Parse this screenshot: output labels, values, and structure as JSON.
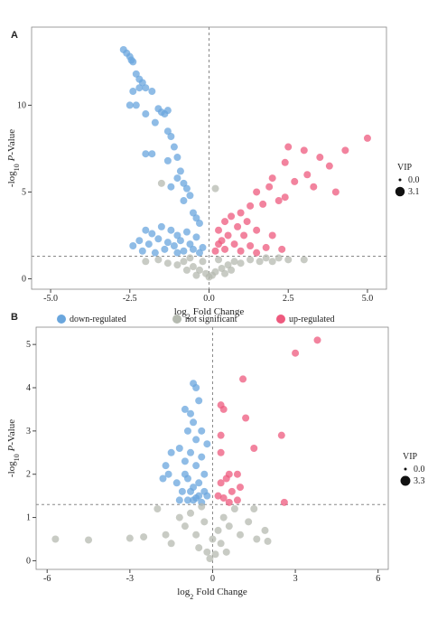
{
  "chart_data": [
    {
      "type": "scatter",
      "panel_label": "A",
      "xlabel": {
        "base": "log",
        "sub": "2",
        "text": "Fold Change"
      },
      "ylabel": {
        "base": "-log",
        "sub": "10",
        "italic": "P",
        "text": "-Value"
      },
      "xlim": [
        -5.6,
        5.6
      ],
      "ylim": [
        -0.6,
        14.5
      ],
      "xticks": [
        {
          "value": -5,
          "label": "-5.0"
        },
        -2.5,
        {
          "value": 0,
          "label": "0.0"
        },
        2.5,
        {
          "value": 5,
          "label": "5.0"
        }
      ],
      "yticks": [
        0,
        5,
        10
      ],
      "hline": 1.3,
      "vline": 0,
      "size_legend": {
        "title": "VIP",
        "values": [
          {
            "value": 0,
            "label": "0.0"
          },
          3.1
        ]
      },
      "series": [
        {
          "name": "down-regulated",
          "color": "#6aa6dd",
          "x": [
            -2.7,
            -2.6,
            -2.5,
            -2.45,
            -2.4,
            -2.3,
            -2.2,
            -2.2,
            -2.1,
            -2.0,
            -1.8,
            -2.4,
            -2.5,
            -2.3,
            -2.0,
            -1.6,
            -1.5,
            -1.7,
            -1.4,
            -1.3,
            -2.0,
            -1.8,
            -1.3,
            -1.2,
            -1.1,
            -1.0,
            -1.3,
            -0.9,
            -1.0,
            -0.8,
            -0.7,
            -0.6,
            -1.2,
            -0.8,
            -0.5,
            -0.4,
            -0.3,
            -2.0,
            -1.8,
            -1.5,
            -1.2,
            -1.0,
            -0.7,
            -2.2,
            -1.9,
            -1.6,
            -1.3,
            -1.1,
            -0.9,
            -0.6,
            -0.4,
            -2.1,
            -1.7,
            -1.4,
            -1.0,
            -0.8,
            -0.5,
            -0.3,
            -2.4,
            -0.2
          ],
          "values": [
            13.2,
            13.0,
            12.8,
            12.6,
            12.5,
            11.8,
            11.5,
            11.0,
            11.3,
            11.0,
            10.8,
            10.8,
            10.0,
            10.0,
            9.5,
            9.8,
            9.6,
            9.0,
            9.5,
            9.7,
            7.2,
            7.2,
            8.5,
            8.2,
            7.6,
            7.0,
            6.8,
            6.2,
            5.8,
            5.5,
            5.2,
            4.8,
            5.3,
            4.5,
            3.8,
            3.5,
            3.2,
            2.8,
            2.6,
            3.0,
            2.8,
            2.5,
            2.7,
            2.2,
            2.0,
            2.3,
            2.1,
            1.9,
            2.2,
            2.0,
            2.4,
            1.6,
            1.5,
            1.7,
            1.5,
            1.6,
            1.7,
            1.5,
            1.9,
            1.8
          ]
        },
        {
          "name": "not significant",
          "color": "#b5bab0",
          "x": [
            -1.3,
            -1.0,
            -0.8,
            -0.5,
            -0.3,
            -0.1,
            0.0,
            0.1,
            0.2,
            0.4,
            0.6,
            0.8,
            1.0,
            1.3,
            1.6,
            2.0,
            2.5,
            -1.6,
            -2.0,
            -0.2,
            0.3,
            -0.6,
            1.8,
            0.7,
            -0.7,
            -1.5,
            0.2,
            2.2,
            3.0,
            -0.4,
            0.5
          ],
          "values": [
            0.9,
            0.8,
            1.0,
            0.7,
            0.5,
            0.3,
            0.1,
            0.2,
            0.4,
            0.6,
            0.8,
            1.0,
            0.9,
            1.1,
            1.0,
            1.0,
            1.1,
            1.1,
            1.0,
            1.0,
            1.1,
            1.2,
            1.2,
            0.5,
            0.5,
            5.5,
            5.2,
            1.2,
            1.1,
            0.2,
            0.3
          ]
        },
        {
          "name": "up-regulated",
          "color": "#ee5a7e",
          "x": [
            5.0,
            4.3,
            3.8,
            3.5,
            3.1,
            3.0,
            2.5,
            2.4,
            2.7,
            4.0,
            3.3,
            2.0,
            1.9,
            1.5,
            2.2,
            2.4,
            1.7,
            1.3,
            1.0,
            1.2,
            0.9,
            0.7,
            0.5,
            0.3,
            1.5,
            2.0,
            1.1,
            0.6,
            0.4,
            0.8,
            1.3,
            1.8,
            2.3,
            1.0,
            0.5,
            0.2,
            1.5,
            0.3
          ],
          "values": [
            8.1,
            7.4,
            6.5,
            7.0,
            6.0,
            7.4,
            7.6,
            6.7,
            5.6,
            5.0,
            5.3,
            5.8,
            5.3,
            5.0,
            4.5,
            4.7,
            4.3,
            4.2,
            3.8,
            3.3,
            3.0,
            3.6,
            3.3,
            2.8,
            2.8,
            2.5,
            2.5,
            2.5,
            2.2,
            2.0,
            1.9,
            1.8,
            1.7,
            1.6,
            1.7,
            1.6,
            1.5,
            2.0
          ]
        }
      ]
    },
    {
      "type": "scatter",
      "panel_label": "B",
      "xlabel": {
        "base": "log",
        "sub": "2",
        "text": "Fold Change"
      },
      "ylabel": {
        "base": "-log",
        "sub": "10",
        "italic": "P",
        "text": "-Value"
      },
      "xlim": [
        -6.4,
        6.37
      ],
      "ylim": [
        -0.2,
        5.4
      ],
      "xticks": [
        -6,
        -3,
        0,
        3,
        6
      ],
      "yticks": [
        0,
        1,
        2,
        3,
        4,
        5
      ],
      "hline": 1.3,
      "vline": 0,
      "size_legend": {
        "title": "VIP",
        "values": [
          {
            "value": 0,
            "label": "0.0"
          },
          3.3
        ]
      },
      "series": [
        {
          "color": "#6aa6dd",
          "x": [
            -0.7,
            -0.6,
            -1.0,
            -0.8,
            -0.7,
            -0.5,
            -0.9,
            -0.4,
            -0.6,
            -1.5,
            -1.7,
            -1.8,
            -1.6,
            -1.2,
            -1.0,
            -0.8,
            -0.6,
            -0.4,
            -0.3,
            -1.3,
            -1.1,
            -0.9,
            -0.7,
            -0.5,
            -0.3,
            -0.2,
            -0.9,
            -0.6,
            -0.4,
            -1.2,
            -0.8,
            -1.0,
            -0.2,
            -0.5,
            -0.7
          ],
          "values": [
            4.1,
            4.0,
            3.5,
            3.4,
            3.2,
            3.7,
            3.0,
            3.0,
            2.8,
            2.5,
            2.2,
            1.9,
            2.0,
            2.6,
            2.3,
            2.5,
            2.2,
            2.4,
            2.0,
            1.8,
            1.6,
            1.9,
            1.7,
            1.8,
            1.6,
            1.5,
            1.4,
            1.45,
            1.35,
            1.4,
            1.6,
            2.0,
            2.7,
            1.5,
            1.4
          ]
        },
        {
          "color": "#b5bab0",
          "x": [
            -5.7,
            -4.5,
            -3.0,
            -2.5,
            -1.7,
            -1.5,
            -1.2,
            -1.0,
            -0.8,
            -0.6,
            -0.5,
            -0.3,
            -0.2,
            -0.1,
            0.0,
            0.1,
            0.2,
            0.3,
            0.4,
            0.6,
            0.8,
            1.0,
            1.3,
            1.6,
            1.9,
            2.0,
            -2.0,
            1.5,
            -0.4,
            0.5
          ],
          "values": [
            0.5,
            0.48,
            0.52,
            0.55,
            0.6,
            0.4,
            1.0,
            0.8,
            1.1,
            0.6,
            0.3,
            0.9,
            0.2,
            0.05,
            0.5,
            0.15,
            0.7,
            0.4,
            1.0,
            0.8,
            1.2,
            0.6,
            0.9,
            0.5,
            0.7,
            0.45,
            1.2,
            1.2,
            1.25,
            0.2
          ]
        },
        {
          "color": "#ee5a7e",
          "x": [
            3.8,
            3.0,
            1.1,
            0.3,
            0.4,
            1.2,
            0.3,
            2.5,
            1.5,
            0.3,
            0.6,
            0.9,
            0.3,
            0.5,
            0.7,
            1.0,
            0.9,
            0.4,
            0.2,
            0.6,
            2.6
          ],
          "values": [
            5.1,
            4.8,
            4.2,
            3.6,
            3.5,
            3.3,
            2.9,
            2.9,
            2.6,
            2.5,
            2.0,
            2.0,
            1.8,
            1.9,
            1.6,
            1.7,
            1.4,
            1.45,
            1.5,
            1.35,
            1.35
          ]
        }
      ]
    }
  ]
}
